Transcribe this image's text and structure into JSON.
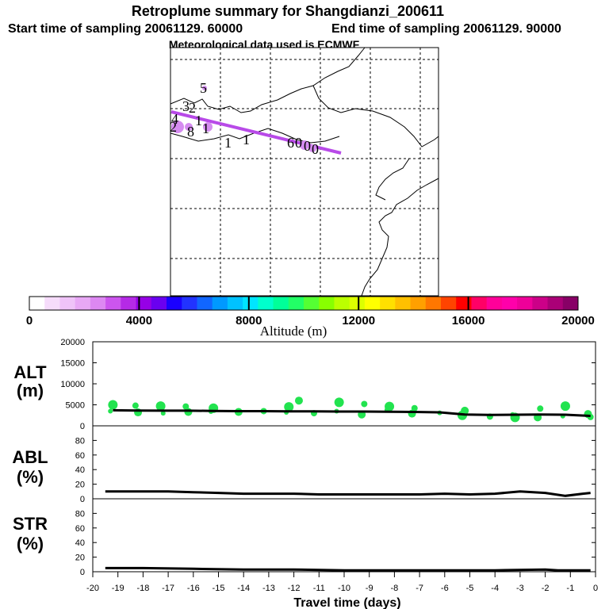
{
  "title": "Retroplume summary for Shangdianzi_200611",
  "start_label": "Start time of sampling 20061129. 60000",
  "end_label": "End time of sampling 20061129. 90000",
  "met_label": "Meteorological data used is ECMWF",
  "colors": {
    "trajectory": "#b84ae8",
    "marker": "#d58cf0",
    "points": "#22e34f",
    "line": "#000000"
  },
  "map": {
    "trajectory_labels": [
      "5",
      "3",
      "2",
      "4",
      "1",
      "2",
      "8",
      "1",
      "1",
      "1",
      "6",
      "0",
      "0",
      "0"
    ]
  },
  "colorbar": {
    "title": "Altitude (m)",
    "tick_labels": [
      "0",
      "4000",
      "8000",
      "12000",
      "16000",
      "20000"
    ],
    "range": [
      0,
      20000
    ],
    "colors": [
      "#ffffff",
      "#f6dcfb",
      "#efc3f8",
      "#e8a8f5",
      "#dd88f2",
      "#cc55ee",
      "#b52ae6",
      "#9600e6",
      "#6a00f0",
      "#1a00ff",
      "#2233ff",
      "#1166ff",
      "#0099ff",
      "#00c2ff",
      "#00e5ff",
      "#00ffcc",
      "#00ff99",
      "#22ff66",
      "#55ff33",
      "#88ff00",
      "#bbff00",
      "#ddff00",
      "#ffff00",
      "#ffe000",
      "#ffc000",
      "#ffa000",
      "#ff7700",
      "#ff4400",
      "#ff0000",
      "#ff0066",
      "#ff0099",
      "#ff00aa",
      "#ee0099",
      "#cc0088",
      "#aa0077",
      "#880066"
    ]
  },
  "chart_data": [
    {
      "type": "scatter",
      "ylabel": "ALT",
      "yunit": "(m)",
      "xlim": [
        -20,
        0
      ],
      "ylim": [
        0,
        20000
      ],
      "yticks": [
        "20000",
        "15000",
        "10000",
        "5000",
        "0"
      ],
      "x": [
        -19.2,
        -18.2,
        -17.2,
        -16.2,
        -15.2,
        -14.2,
        -13.2,
        -12.2,
        -11.2,
        -10.2,
        -9.2,
        -8.2,
        -7.2,
        -6.2,
        -5.2,
        -4.2,
        -3.2,
        -2.2,
        -1.2,
        -0.2
      ],
      "values": [
        3700,
        3650,
        3600,
        3600,
        3550,
        3500,
        3500,
        3450,
        3450,
        3400,
        3400,
        3350,
        3300,
        3200,
        2700,
        2600,
        2650,
        2700,
        2650,
        2350
      ],
      "points_x": [
        -19.3,
        -19.2,
        -18.2,
        -18.3,
        -17.2,
        -17.3,
        -16.2,
        -16.3,
        -15.3,
        -15.2,
        -14.2,
        -13.2,
        -12.3,
        -12.2,
        -11.8,
        -11.2,
        -10.3,
        -10.2,
        -9.3,
        -9.2,
        -8.3,
        -8.2,
        -7.3,
        -7.2,
        -6.2,
        -5.3,
        -5.2,
        -4.2,
        -3.3,
        -3.2,
        -2.3,
        -2.2,
        -1.3,
        -1.2,
        -0.3,
        -0.2
      ],
      "points_y": [
        3500,
        5000,
        3200,
        4800,
        3000,
        4700,
        3300,
        4600,
        3400,
        4200,
        3300,
        3500,
        3200,
        4500,
        6000,
        3000,
        3500,
        5600,
        2700,
        5200,
        3800,
        4600,
        2900,
        4200,
        3100,
        2500,
        3600,
        2200,
        2700,
        2000,
        2000,
        4100,
        2300,
        4700,
        2800,
        2100
      ]
    },
    {
      "type": "line",
      "ylabel": "ABL",
      "yunit": "(%)",
      "xlim": [
        -20,
        0
      ],
      "ylim": [
        0,
        100
      ],
      "yticks": [
        "80",
        "60",
        "40",
        "20",
        "0"
      ],
      "x": [
        -19.5,
        -18,
        -17,
        -16,
        -15,
        -14,
        -13,
        -12,
        -11,
        -10,
        -9,
        -8,
        -7,
        -6,
        -5,
        -4,
        -3,
        -2,
        -1.2,
        -0.5,
        -0.2
      ],
      "values": [
        10,
        10,
        10,
        9,
        8,
        7,
        7,
        7,
        6,
        6,
        6,
        6,
        6,
        7,
        6,
        7,
        10,
        8,
        4,
        7,
        8
      ]
    },
    {
      "type": "line",
      "ylabel": "STR",
      "yunit": "(%)",
      "xlim": [
        -20,
        0
      ],
      "ylim": [
        0,
        100
      ],
      "yticks": [
        "80",
        "60",
        "40",
        "20",
        "0"
      ],
      "x": [
        -19.5,
        -18,
        -16,
        -14,
        -12,
        -10,
        -8,
        -6,
        -4,
        -2,
        -1.5,
        -1,
        -0.2
      ],
      "values": [
        5,
        5,
        4,
        3,
        3,
        2,
        2,
        2,
        2,
        3,
        2,
        2,
        2
      ],
      "xlabel": "Travel time (days)",
      "xticks": [
        "-20",
        "-19",
        "-18",
        "-17",
        "-16",
        "-15",
        "-14",
        "-13",
        "-12",
        "-11",
        "-10",
        "-9",
        "-8",
        "-7",
        "-6",
        "-5",
        "-4",
        "-3",
        "-2",
        "-1",
        "0"
      ]
    }
  ]
}
